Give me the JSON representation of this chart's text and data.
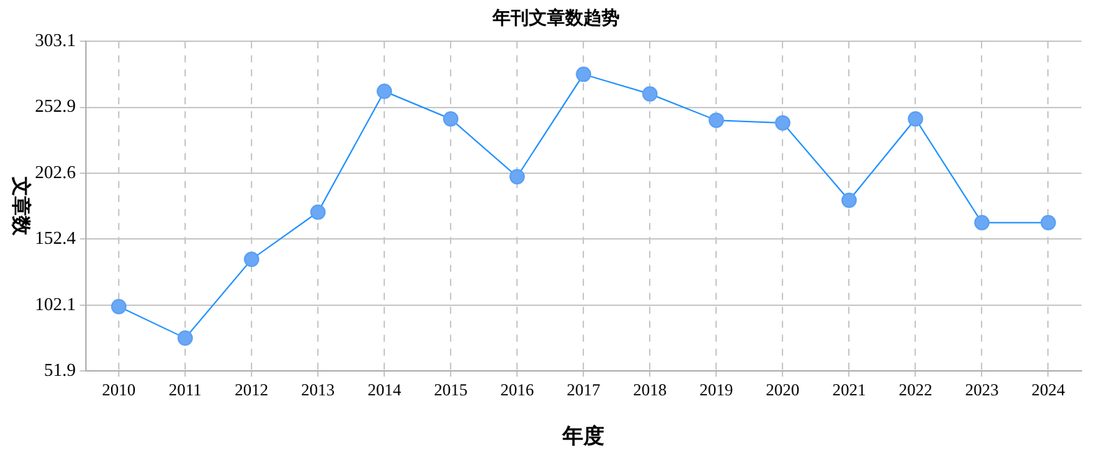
{
  "chart_data": {
    "type": "line",
    "title": "年刊文章数趋势",
    "xlabel": "年度",
    "ylabel": "文章数",
    "categories": [
      "2010",
      "2011",
      "2012",
      "2013",
      "2014",
      "2015",
      "2016",
      "2017",
      "2018",
      "2019",
      "2020",
      "2021",
      "2022",
      "2023",
      "2024"
    ],
    "series": [
      {
        "color": "#1e90ff",
        "values": [
          101,
          77,
          137,
          173,
          265,
          244,
          200,
          278,
          263,
          243,
          241,
          182,
          244,
          165,
          165
        ]
      }
    ],
    "ylim": [
      51.9,
      303.1
    ],
    "yticks": [
      51.9,
      102.1,
      152.4,
      202.6,
      252.9,
      303.1
    ],
    "grid": true,
    "legend": false,
    "marker": "circle",
    "line_style": "solid"
  }
}
